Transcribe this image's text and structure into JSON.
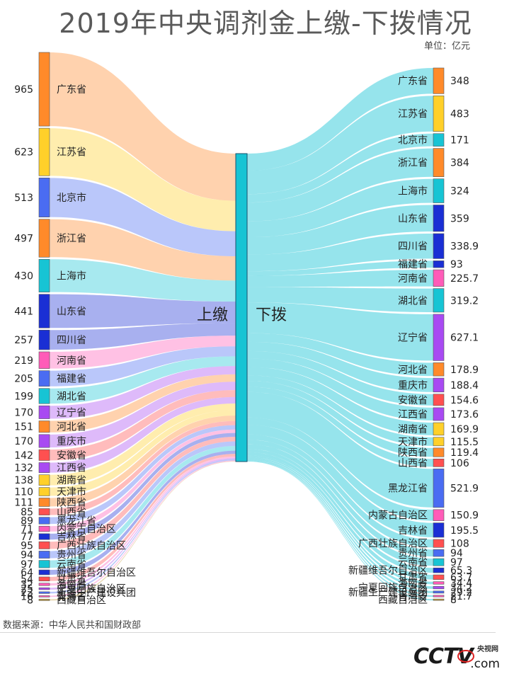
{
  "title": "2019年中央调剂金上缴-下拨情况",
  "unit": "单位：亿元",
  "source": "数据来源：中华人民共和国财政部",
  "logo": {
    "main": "CCTV",
    "cn": "央视网",
    "com": ".com"
  },
  "chart_data": {
    "type": "sankey",
    "center_labels": {
      "left": "上缴",
      "right": "下拨"
    },
    "center_color": "#17c4d4",
    "sources": [
      {
        "name": "广东省",
        "value": 965,
        "color": "#ff8a2a"
      },
      {
        "name": "江苏省",
        "value": 623,
        "color": "#ffd02a"
      },
      {
        "name": "北京市",
        "value": 513,
        "color": "#4a6cf2"
      },
      {
        "name": "浙江省",
        "value": 497,
        "color": "#ff8a2a"
      },
      {
        "name": "上海市",
        "value": 430,
        "color": "#17c4d4"
      },
      {
        "name": "山东省",
        "value": 441,
        "color": "#1a2fd4"
      },
      {
        "name": "四川省",
        "value": 257,
        "color": "#1a2fd4"
      },
      {
        "name": "河南省",
        "value": 219,
        "color": "#ff5cb8"
      },
      {
        "name": "福建省",
        "value": 205,
        "color": "#4a6cf2"
      },
      {
        "name": "湖北省",
        "value": 199,
        "color": "#17c4d4"
      },
      {
        "name": "辽宁省",
        "value": 170,
        "color": "#a84af2"
      },
      {
        "name": "河北省",
        "value": 151,
        "color": "#ff8a2a"
      },
      {
        "name": "重庆市",
        "value": 170,
        "color": "#a84af2"
      },
      {
        "name": "安徽省",
        "value": 142,
        "color": "#ff5050"
      },
      {
        "name": "江西省",
        "value": 132,
        "color": "#a84af2"
      },
      {
        "name": "湖南省",
        "value": 138,
        "color": "#ffd02a"
      },
      {
        "name": "天津市",
        "value": 110,
        "color": "#ffd02a"
      },
      {
        "name": "陕西省",
        "value": 111,
        "color": "#ff8a2a"
      },
      {
        "name": "山西省",
        "value": 85,
        "color": "#ff5050"
      },
      {
        "name": "黑龙江省",
        "value": 89,
        "color": "#4a6cf2"
      },
      {
        "name": "内蒙古自治区",
        "value": 71,
        "color": "#ff5cb8"
      },
      {
        "name": "吉林省",
        "value": 77,
        "color": "#1a2fd4"
      },
      {
        "name": "广西壮族自治区",
        "value": 95,
        "color": "#ff5050"
      },
      {
        "name": "贵州省",
        "value": 94,
        "color": "#4a6cf2"
      },
      {
        "name": "云南省",
        "value": 97,
        "color": "#17c4d4"
      },
      {
        "name": "新疆维吾尔自治区",
        "value": 64,
        "color": "#1a2fd4"
      },
      {
        "name": "甘肃省",
        "value": 54,
        "color": "#ff5050"
      },
      {
        "name": "海南省",
        "value": 32,
        "color": "#ff5cb8"
      },
      {
        "name": "宁夏回族自治区",
        "value": 25,
        "color": "#a84af2"
      },
      {
        "name": "新疆生产建设兵团",
        "value": 23,
        "color": "#4a6cf2"
      },
      {
        "name": "青海省",
        "value": 16,
        "color": "#ff5cb8"
      },
      {
        "name": "西藏自治区",
        "value": 8,
        "color": "#c8a040"
      }
    ],
    "targets": [
      {
        "name": "广东省",
        "value": "348",
        "color": "#ff8a2a"
      },
      {
        "name": "江苏省",
        "value": "483",
        "color": "#ffd02a"
      },
      {
        "name": "北京市",
        "value": "171",
        "color": "#17c4d4"
      },
      {
        "name": "浙江省",
        "value": "384",
        "color": "#ff8a2a"
      },
      {
        "name": "上海市",
        "value": "324",
        "color": "#17c4d4"
      },
      {
        "name": "山东省",
        "value": "359",
        "color": "#1a2fd4"
      },
      {
        "name": "四川省",
        "value": "338.9",
        "color": "#1a2fd4"
      },
      {
        "name": "福建省",
        "value": "93",
        "color": "#1a2fd4"
      },
      {
        "name": "河南省",
        "value": "225.7",
        "color": "#ff5cb8"
      },
      {
        "name": "湖北省",
        "value": "319.2",
        "color": "#17c4d4"
      },
      {
        "name": "辽宁省",
        "value": "627.1",
        "color": "#a84af2"
      },
      {
        "name": "河北省",
        "value": "178.9",
        "color": "#ff8a2a"
      },
      {
        "name": "重庆市",
        "value": "188.4",
        "color": "#a84af2"
      },
      {
        "name": "安徽省",
        "value": "154.6",
        "color": "#ff5050"
      },
      {
        "name": "江西省",
        "value": "173.6",
        "color": "#a84af2"
      },
      {
        "name": "湖南省",
        "value": "169.9",
        "color": "#ffd02a"
      },
      {
        "name": "天津市",
        "value": "115.5",
        "color": "#ffd02a"
      },
      {
        "name": "陕西省",
        "value": "119.4",
        "color": "#ff8a2a"
      },
      {
        "name": "山西省",
        "value": "106",
        "color": "#ff5050"
      },
      {
        "name": "黑龙江省",
        "value": "521.9",
        "color": "#4a6cf2"
      },
      {
        "name": "内蒙古自治区",
        "value": "150.9",
        "color": "#ff5cb8"
      },
      {
        "name": "吉林省",
        "value": "195.5",
        "color": "#1a2fd4"
      },
      {
        "name": "广西壮族自治区",
        "value": "108",
        "color": "#ff5050"
      },
      {
        "name": "贵州省",
        "value": "94",
        "color": "#4a6cf2"
      },
      {
        "name": "云南省",
        "value": "97",
        "color": "#17c4d4"
      },
      {
        "name": "新疆维吾尔自治区",
        "value": "65.3",
        "color": "#1a2fd4"
      },
      {
        "name": "甘肃省",
        "value": "63.7",
        "color": "#ff5050"
      },
      {
        "name": "海南省",
        "value": "34.4",
        "color": "#ff5cb8"
      },
      {
        "name": "宁夏回族自治区",
        "value": "34.2",
        "color": "#a84af2"
      },
      {
        "name": "新疆生产建设兵团",
        "value": "29.2",
        "color": "#4a6cf2"
      },
      {
        "name": "青海省",
        "value": "21.7",
        "color": "#ff5cb8"
      },
      {
        "name": "西藏自治区",
        "value": "8",
        "color": "#c8a040"
      }
    ]
  }
}
